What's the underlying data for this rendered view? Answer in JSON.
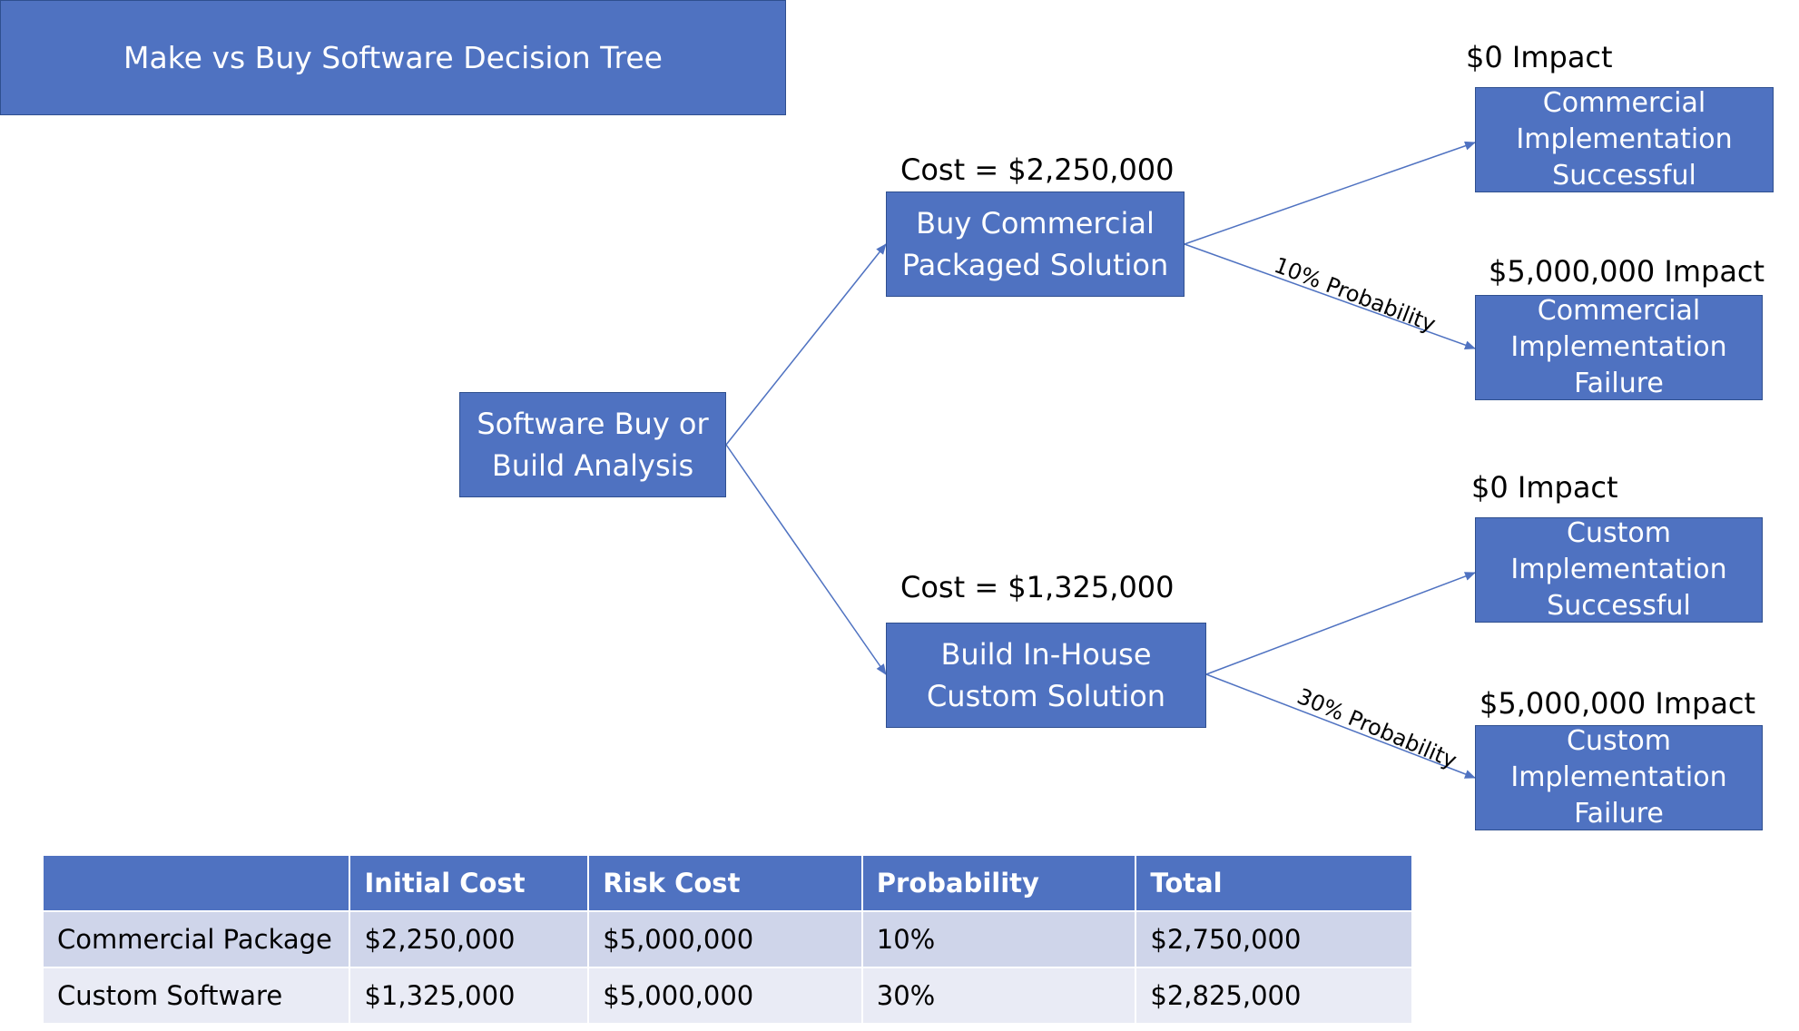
{
  "title": "Make vs Buy Software Decision Tree",
  "root": {
    "line1": "Software Buy or",
    "line2": "Build Analysis"
  },
  "buy": {
    "cost": "Cost = $2,250,000",
    "line1": "Buy Commercial",
    "line2": "Packaged Solution",
    "probability": "10% Probability",
    "success": {
      "impact": "$0 Impact",
      "line1": "Commercial",
      "line2": "Implementation",
      "line3": "Successful"
    },
    "failure": {
      "impact": "$5,000,000 Impact",
      "line1": "Commercial",
      "line2": "Implementation",
      "line3": "Failure"
    }
  },
  "build": {
    "cost": "Cost = $1,325,000",
    "line1": "Build In-House",
    "line2": "Custom Solution",
    "probability": "30% Probability",
    "success": {
      "impact": "$0 Impact",
      "line1": "Custom",
      "line2": "Implementation",
      "line3": "Successful"
    },
    "failure": {
      "impact": "$5,000,000 Impact",
      "line1": "Custom",
      "line2": "Implementation",
      "line3": "Failure"
    }
  },
  "table": {
    "headers": [
      "",
      "Initial Cost",
      "Risk Cost",
      "Probability",
      "Total"
    ],
    "rows": [
      [
        "Commercial Package",
        "$2,250,000",
        "$5,000,000",
        "10%",
        "$2,750,000"
      ],
      [
        "Custom Software",
        "$1,325,000",
        "$5,000,000",
        "30%",
        "$2,825,000"
      ]
    ]
  },
  "colors": {
    "box_fill": "#4f72c1",
    "box_border": "#2f4f8f",
    "edge": "#4f72c1",
    "row_a": "#cfd5ea",
    "row_b": "#e9ebf5"
  }
}
